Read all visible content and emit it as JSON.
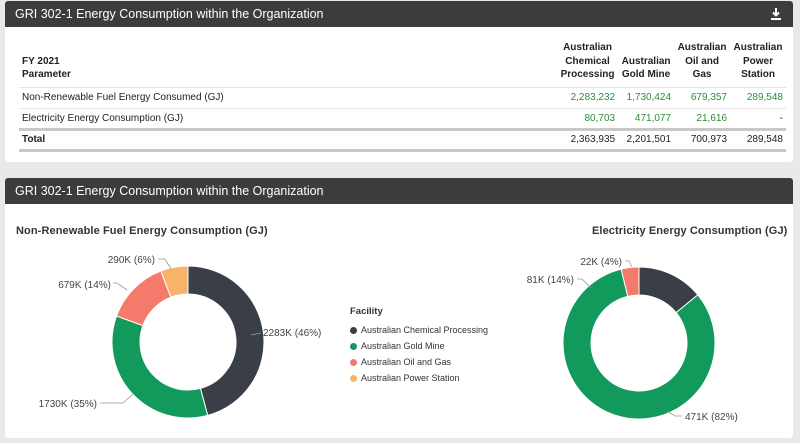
{
  "top_panel": {
    "title": "GRI 302-1 Energy Consumption within the Organization",
    "download_icon": "download-icon",
    "table": {
      "header_fy": "FY 2021",
      "header_param": "Parameter",
      "columns": [
        [
          "Australian",
          "Chemical",
          "Processing"
        ],
        [
          "Australian",
          "Gold Mine"
        ],
        [
          "Australian",
          "Oil and",
          "Gas"
        ],
        [
          "Australian",
          "Power",
          "Station"
        ]
      ],
      "rows": [
        {
          "label": "Non-Renewable Fuel Energy Consumed (GJ)",
          "values": [
            "2,283,232",
            "1,730,424",
            "679,357",
            "289,548"
          ]
        },
        {
          "label": "Electricity Energy Consumption (GJ)",
          "values": [
            "80,703",
            "471,077",
            "21,616",
            "-"
          ]
        }
      ],
      "total": {
        "label": "Total",
        "values": [
          "2,363,935",
          "2,201,501",
          "700,973",
          "289,548"
        ]
      }
    }
  },
  "bottom_panel": {
    "title": "GRI 302-1 Energy Consumption within the Organization"
  },
  "colors": {
    "chemical": "#3a3f47",
    "gold": "#119a5c",
    "oil": "#f47a6c",
    "power": "#f8b26a"
  },
  "legend": {
    "title": "Facility",
    "items": [
      {
        "label": "Australian Chemical Processing",
        "color": "#3a3f47"
      },
      {
        "label": "Australian Gold Mine",
        "color": "#119a5c"
      },
      {
        "label": "Australian Oil and Gas",
        "color": "#f47a6c"
      },
      {
        "label": "Australian Power Station",
        "color": "#f8b26a"
      }
    ]
  },
  "chart_data": [
    {
      "type": "pie",
      "title": "Non-Renewable Fuel Energy Consumption (GJ)",
      "categories": [
        "Australian Chemical Processing",
        "Australian Gold Mine",
        "Australian Oil and Gas",
        "Australian Power Station"
      ],
      "values": [
        2283232,
        1730424,
        679357,
        289548
      ],
      "labels": [
        "2283K (46%)",
        "1730K (35%)",
        "679K (14%)",
        "290K (6%)"
      ],
      "legend": "center"
    },
    {
      "type": "pie",
      "title": "Electricity Energy Consumption (GJ)",
      "categories": [
        "Australian Chemical Processing",
        "Australian Gold Mine",
        "Australian Oil and Gas",
        "Australian Power Station"
      ],
      "values": [
        80703,
        471077,
        21616,
        0
      ],
      "labels": [
        "81K (14%)",
        "471K (82%)",
        "22K (4%)",
        ""
      ]
    }
  ]
}
